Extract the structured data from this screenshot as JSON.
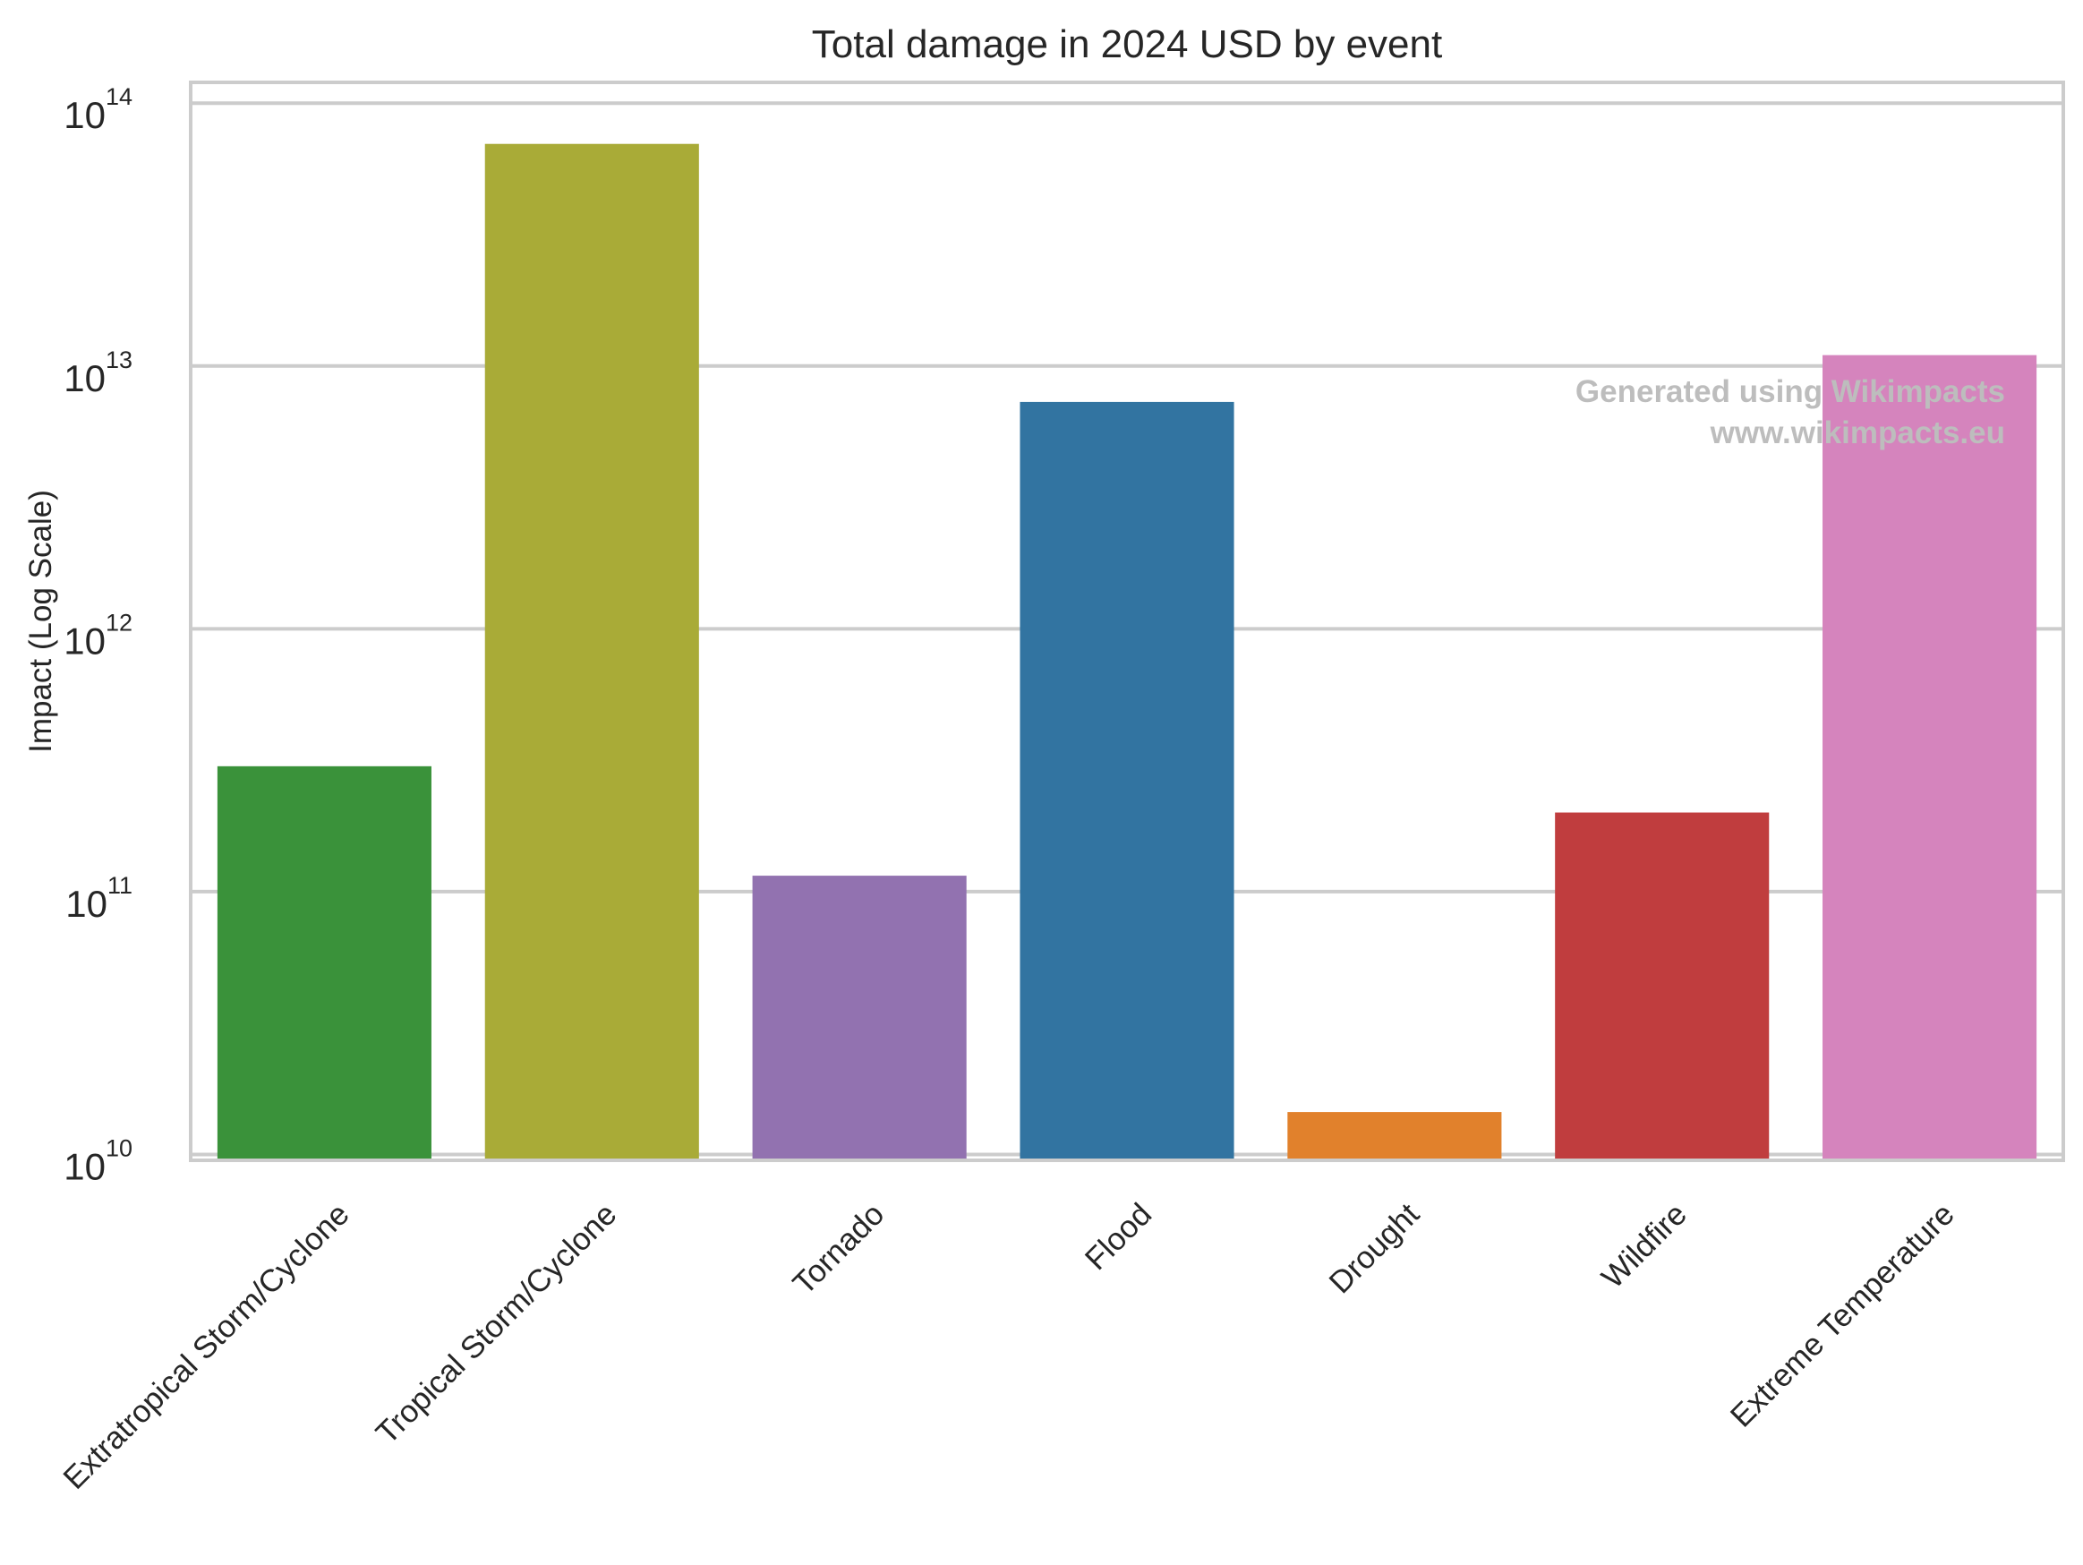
{
  "chart_data": {
    "type": "bar",
    "title": "Total damage in 2024 USD by event",
    "xlabel": "",
    "ylabel": "Impact (Log Scale)",
    "yscale": "log",
    "ylim": [
      9500000000,
      120000000000000
    ],
    "yticks": [
      {
        "base": "10",
        "exp": "10",
        "value": 10000000000
      },
      {
        "base": "10",
        "exp": "11",
        "value": 100000000000
      },
      {
        "base": "10",
        "exp": "12",
        "value": 1000000000000
      },
      {
        "base": "10",
        "exp": "13",
        "value": 10000000000000
      },
      {
        "base": "10",
        "exp": "14",
        "value": 100000000000000
      }
    ],
    "grid": true,
    "categories": [
      "Extratropical Storm/Cyclone",
      "Tropical Storm/Cyclone",
      "Tornado",
      "Flood",
      "Drought",
      "Wildfire",
      "Extreme Temperature"
    ],
    "values": [
      300000000000,
      70000000000000,
      115000000000,
      7300000000000,
      14500000000,
      200000000000,
      11000000000000
    ],
    "colors": [
      "#3a923a",
      "#a9ab37",
      "#9272b0",
      "#3274a1",
      "#e1812c",
      "#c03d3e",
      "#d584bd"
    ]
  },
  "watermark": {
    "line1": "Generated using Wikimpacts",
    "line2": "www.wikimpacts.eu"
  }
}
